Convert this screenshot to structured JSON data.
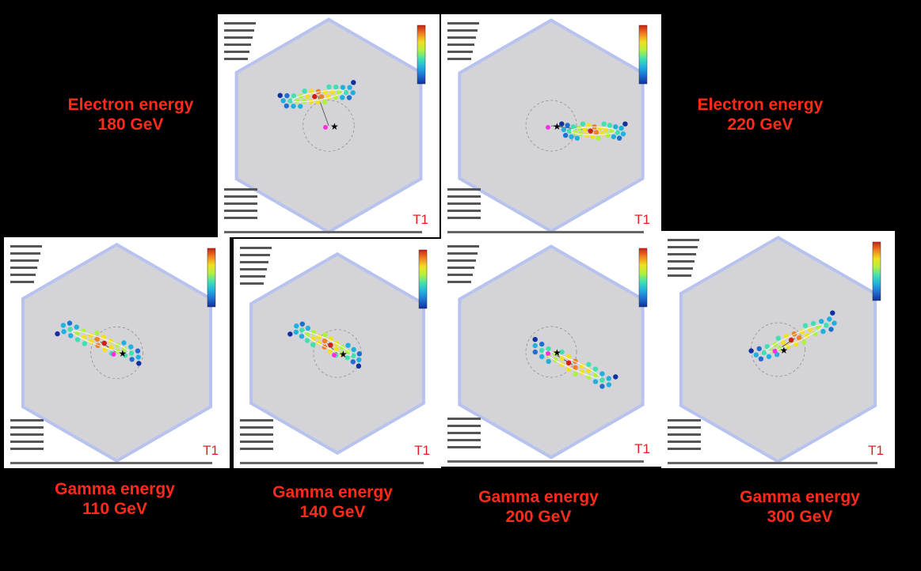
{
  "panels": [
    {
      "caption": [
        "Electron energy",
        "180 GeV"
      ],
      "tag": "T1"
    },
    {
      "caption": [
        "Electron energy",
        "220 GeV"
      ],
      "tag": "T1"
    },
    {
      "caption": [
        "Gamma energy",
        "110 GeV"
      ],
      "tag": "T1"
    },
    {
      "caption": [
        "Gamma energy",
        "140 GeV"
      ],
      "tag": "T1"
    },
    {
      "caption": [
        "Gamma energy",
        "200 GeV"
      ],
      "tag": "T1"
    },
    {
      "caption": [
        "Gamma energy",
        "300 GeV"
      ],
      "tag": "T1"
    }
  ]
}
